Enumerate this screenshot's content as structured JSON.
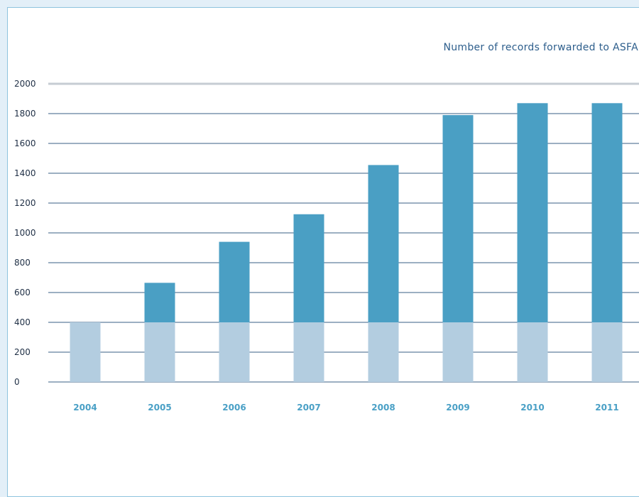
{
  "chart_data": {
    "type": "bar",
    "title": "Number of records forwarded to ASFA",
    "categories": [
      "2004",
      "2005",
      "2006",
      "2007",
      "2008",
      "2009",
      "2010",
      "2011"
    ],
    "series": [
      {
        "values": [
          400,
          400,
          400,
          400,
          400,
          400,
          400,
          400
        ]
      },
      {
        "values": [
          0,
          265,
          540,
          725,
          1055,
          1390,
          1470,
          1470
        ]
      }
    ],
    "stacked": true,
    "totals": [
      400,
      665,
      940,
      1125,
      1455,
      1790,
      1870,
      1870
    ],
    "ylim": [
      0,
      2000
    ],
    "yticks": [
      0,
      200,
      400,
      600,
      800,
      1000,
      1200,
      1400,
      1600,
      1800,
      2000
    ],
    "grid": true,
    "colors": {
      "base": "#b3cde0",
      "increase": "#4a9fc4",
      "grid": "#3a5f85",
      "top_line": "#c6ccd3",
      "panel_border": "#8ec3de",
      "page_background": "#e3eff8",
      "xtick": "#4aa0c6",
      "title": "#2d5e8c"
    }
  }
}
